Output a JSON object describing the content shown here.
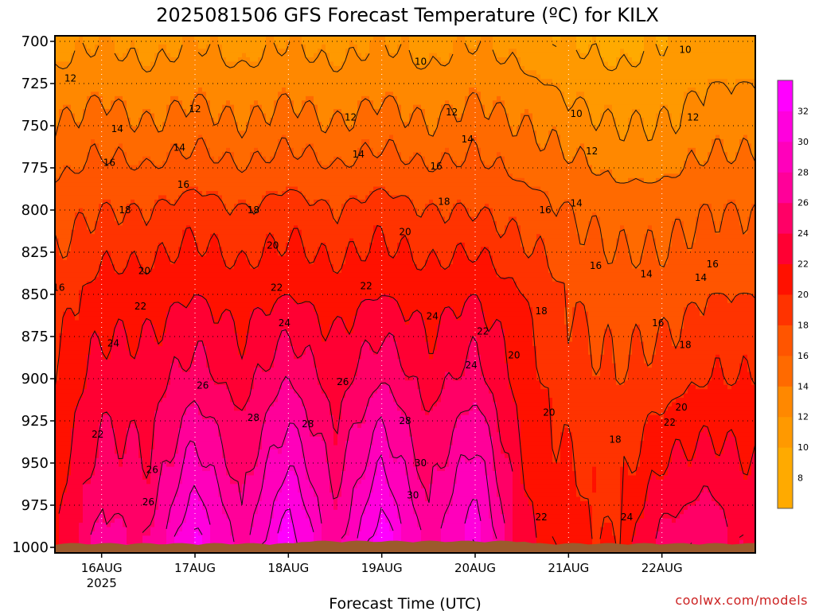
{
  "title": "2025081506 GFS Forecast Temperature (ºC) for KILX",
  "credit": "coolwx.com/models",
  "chart_data": {
    "type": "contour",
    "title": "2025081506 GFS Forecast Temperature (ºC) for KILX",
    "xlabel": "Forecast Time (UTC)",
    "ylabel": "",
    "y_axis": {
      "ticks": [
        700,
        725,
        750,
        775,
        800,
        825,
        850,
        875,
        900,
        925,
        950,
        975,
        1000
      ],
      "ylim": [
        1000,
        700
      ],
      "inverted": true
    },
    "x_axis": {
      "ticks": [
        {
          "label": "16AUG",
          "sub": "2025",
          "hour": 18
        },
        {
          "label": "17AUG",
          "sub": "",
          "hour": 42
        },
        {
          "label": "18AUG",
          "sub": "",
          "hour": 66
        },
        {
          "label": "19AUG",
          "sub": "",
          "hour": 90
        },
        {
          "label": "20AUG",
          "sub": "",
          "hour": 114
        },
        {
          "label": "21AUG",
          "sub": "",
          "hour": 138
        },
        {
          "label": "22AUG",
          "sub": "",
          "hour": 162
        }
      ],
      "xlim_hours": [
        6,
        186
      ]
    },
    "grid": true,
    "levels": [
      8,
      10,
      12,
      14,
      16,
      18,
      20,
      22,
      24,
      26,
      28,
      30,
      32
    ],
    "colors": [
      "#ffaa00",
      "#ff9900",
      "#ff8800",
      "#ff6a00",
      "#ff5500",
      "#ff3300",
      "#ff1100",
      "#ff0033",
      "#ff0066",
      "#ff0099",
      "#ff00bb",
      "#ff00dd",
      "#ff00ff"
    ],
    "colorbar_ticks": [
      8,
      10,
      12,
      14,
      16,
      18,
      20,
      22,
      24,
      26,
      28,
      30,
      32
    ],
    "series": [
      {
        "name": "",
        "hours": [
          6,
          18,
          30,
          42,
          54,
          66,
          78,
          90,
          102,
          114,
          126,
          138,
          150,
          162,
          174,
          186
        ],
        "level": 700,
        "values": [
          11,
          12,
          11,
          12,
          11,
          12,
          11,
          12,
          11,
          12,
          11,
          10,
          9,
          10,
          11,
          11
        ]
      },
      {
        "name": "",
        "level": 750,
        "values": [
          14,
          15,
          14,
          15,
          14,
          15,
          14,
          15,
          14,
          15,
          14,
          13,
          12,
          12,
          13,
          13
        ]
      },
      {
        "name": "",
        "level": 800,
        "values": [
          17,
          18,
          18,
          19,
          18,
          19,
          18,
          19,
          18,
          18,
          17,
          16,
          15,
          15,
          16,
          16
        ]
      },
      {
        "name": "",
        "level": 850,
        "values": [
          19,
          21,
          21,
          22,
          21,
          22,
          21,
          22,
          21,
          22,
          20,
          18,
          17,
          17,
          18,
          18
        ]
      },
      {
        "name": "",
        "level": 900,
        "values": [
          20,
          23,
          23,
          25,
          23,
          26,
          23,
          26,
          23,
          25,
          21,
          19,
          18,
          19,
          20,
          20
        ]
      },
      {
        "name": "",
        "level": 950,
        "values": [
          21,
          25,
          24,
          29,
          25,
          30,
          25,
          30,
          25,
          29,
          22,
          20,
          19,
          22,
          23,
          22
        ]
      },
      {
        "name": "",
        "level": 1000,
        "values": [
          22,
          27,
          26,
          33,
          27,
          34,
          27,
          34,
          27,
          32,
          23,
          21,
          20,
          25,
          26,
          23
        ]
      }
    ],
    "contour_labels": [
      {
        "value": "10",
        "hour": 100,
        "p": 712
      },
      {
        "value": "10",
        "hour": 140,
        "p": 743
      },
      {
        "value": "10",
        "hour": 168,
        "p": 705
      },
      {
        "value": "12",
        "hour": 10,
        "p": 722
      },
      {
        "value": "12",
        "hour": 42,
        "p": 740
      },
      {
        "value": "12",
        "hour": 82,
        "p": 745
      },
      {
        "value": "12",
        "hour": 108,
        "p": 742
      },
      {
        "value": "12",
        "hour": 144,
        "p": 765
      },
      {
        "value": "12",
        "hour": 170,
        "p": 745
      },
      {
        "value": "14",
        "hour": 22,
        "p": 752
      },
      {
        "value": "14",
        "hour": 38,
        "p": 763
      },
      {
        "value": "14",
        "hour": 84,
        "p": 767
      },
      {
        "value": "14",
        "hour": 112,
        "p": 758
      },
      {
        "value": "14",
        "hour": 140,
        "p": 796
      },
      {
        "value": "14",
        "hour": 158,
        "p": 838
      },
      {
        "value": "14",
        "hour": 172,
        "p": 840
      },
      {
        "value": "16",
        "hour": 20,
        "p": 772
      },
      {
        "value": "16",
        "hour": 39,
        "p": 785
      },
      {
        "value": "16",
        "hour": 104,
        "p": 774
      },
      {
        "value": "16",
        "hour": 7,
        "p": 846
      },
      {
        "value": "16",
        "hour": 132,
        "p": 800
      },
      {
        "value": "16",
        "hour": 145,
        "p": 833
      },
      {
        "value": "16",
        "hour": 175,
        "p": 832
      },
      {
        "value": "16",
        "hour": 161,
        "p": 867
      },
      {
        "value": "18",
        "hour": 24,
        "p": 800
      },
      {
        "value": "18",
        "hour": 57,
        "p": 800
      },
      {
        "value": "18",
        "hour": 106,
        "p": 795
      },
      {
        "value": "18",
        "hour": 131,
        "p": 860
      },
      {
        "value": "18",
        "hour": 150,
        "p": 936
      },
      {
        "value": "18",
        "hour": 168,
        "p": 880
      },
      {
        "value": "20",
        "hour": 29,
        "p": 836
      },
      {
        "value": "20",
        "hour": 62,
        "p": 821
      },
      {
        "value": "20",
        "hour": 96,
        "p": 813
      },
      {
        "value": "20",
        "hour": 124,
        "p": 886
      },
      {
        "value": "20",
        "hour": 133,
        "p": 920
      },
      {
        "value": "20",
        "hour": 167,
        "p": 917
      },
      {
        "value": "22",
        "hour": 28,
        "p": 857
      },
      {
        "value": "22",
        "hour": 63,
        "p": 846
      },
      {
        "value": "22",
        "hour": 86,
        "p": 845
      },
      {
        "value": "22",
        "hour": 116,
        "p": 872
      },
      {
        "value": "22",
        "hour": 17,
        "p": 933
      },
      {
        "value": "22",
        "hour": 131,
        "p": 982
      },
      {
        "value": "22",
        "hour": 164,
        "p": 926
      },
      {
        "value": "24",
        "hour": 21,
        "p": 879
      },
      {
        "value": "24",
        "hour": 65,
        "p": 867
      },
      {
        "value": "24",
        "hour": 103,
        "p": 863
      },
      {
        "value": "24",
        "hour": 113,
        "p": 892
      },
      {
        "value": "24",
        "hour": 153,
        "p": 982
      },
      {
        "value": "26",
        "hour": 31,
        "p": 954
      },
      {
        "value": "26",
        "hour": 30,
        "p": 973
      },
      {
        "value": "26",
        "hour": 44,
        "p": 904
      },
      {
        "value": "26",
        "hour": 80,
        "p": 902
      },
      {
        "value": "28",
        "hour": 57,
        "p": 923
      },
      {
        "value": "28",
        "hour": 71,
        "p": 927
      },
      {
        "value": "28",
        "hour": 96,
        "p": 925
      },
      {
        "value": "30",
        "hour": 100,
        "p": 950
      },
      {
        "value": "30",
        "hour": 98,
        "p": 969
      }
    ]
  }
}
